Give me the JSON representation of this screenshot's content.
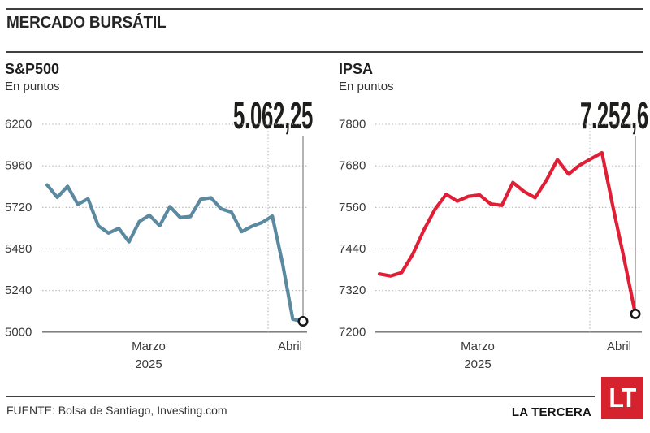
{
  "header": {
    "title": "MERCADO BURSÁTIL"
  },
  "footer": {
    "source": "FUENTE: Bolsa de Santiago, Investing.com",
    "brand": "LA TERCERA",
    "logo_text": "LT"
  },
  "colors": {
    "sp500_line": "#5b89a0",
    "ipsa_line": "#e01f37",
    "grid": "#b4b4b4",
    "baseline": "#6e6e6e",
    "marker_line": "#9c9c9c",
    "marker_stroke": "#161616",
    "logo_red": "#d6212f"
  },
  "chart_data": [
    {
      "type": "line",
      "title": "S&P500",
      "subtitle": "En puntos",
      "end_label": "5.062,25",
      "end_value": 5062.25,
      "ylim": [
        5000,
        6200
      ],
      "y_ticks": [
        6200,
        5960,
        5720,
        5480,
        5240,
        5000
      ],
      "grid": "dotted",
      "legend": "none",
      "x_labels": {
        "month": "Marzo",
        "year": "2025",
        "end": "Abril"
      },
      "line_color": "#5b89a0",
      "values": [
        5850,
        5778,
        5842,
        5738,
        5770,
        5614,
        5572,
        5599,
        5521,
        5638,
        5675,
        5614,
        5725,
        5662,
        5667,
        5767,
        5776,
        5712,
        5693,
        5580,
        5611,
        5633,
        5670,
        5396,
        5074,
        5062.25
      ]
    },
    {
      "type": "line",
      "title": "IPSA",
      "subtitle": "En puntos",
      "end_label": "7.252,6",
      "end_value": 7252.6,
      "ylim": [
        7200,
        7800
      ],
      "y_ticks": [
        7800,
        7680,
        7560,
        7440,
        7320,
        7200
      ],
      "grid": "dotted",
      "legend": "none",
      "x_labels": {
        "month": "Marzo",
        "year": "2025",
        "end": "Abril"
      },
      "line_color": "#e01f37",
      "values": [
        7368,
        7362,
        7372,
        7425,
        7495,
        7555,
        7598,
        7578,
        7592,
        7596,
        7570,
        7566,
        7632,
        7606,
        7588,
        7638,
        7698,
        7656,
        7682,
        7700,
        7718,
        7560,
        7410,
        7252.6
      ]
    }
  ]
}
